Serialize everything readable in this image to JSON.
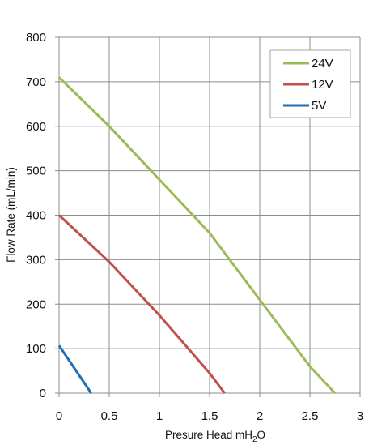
{
  "chart_data": {
    "type": "line",
    "xlabel_main": "Presure Head mH",
    "xlabel_sub": "2",
    "xlabel_tail": "O",
    "ylabel": "Flow Rate (mL/min)",
    "xlim": [
      0,
      3
    ],
    "ylim": [
      0,
      800
    ],
    "x_ticks": [
      "0",
      "0.5",
      "1",
      "1.5",
      "2",
      "2.5",
      "3"
    ],
    "y_ticks": [
      "0",
      "100",
      "200",
      "300",
      "400",
      "500",
      "600",
      "700",
      "800"
    ],
    "grid": true,
    "legend_position": "top-right",
    "series": [
      {
        "name": "24V",
        "color": "#9bbb59",
        "x": [
          0,
          0.5,
          1,
          1.5,
          2,
          2.5,
          2.75
        ],
        "y": [
          710,
          600,
          480,
          360,
          210,
          60,
          0
        ]
      },
      {
        "name": "12V",
        "color": "#c0504d",
        "x": [
          0,
          0.5,
          1,
          1.5,
          1.65
        ],
        "y": [
          400,
          295,
          175,
          45,
          0
        ]
      },
      {
        "name": "5V",
        "color": "#1f6fb5",
        "x": [
          0,
          0.32
        ],
        "y": [
          107,
          0
        ]
      }
    ]
  }
}
